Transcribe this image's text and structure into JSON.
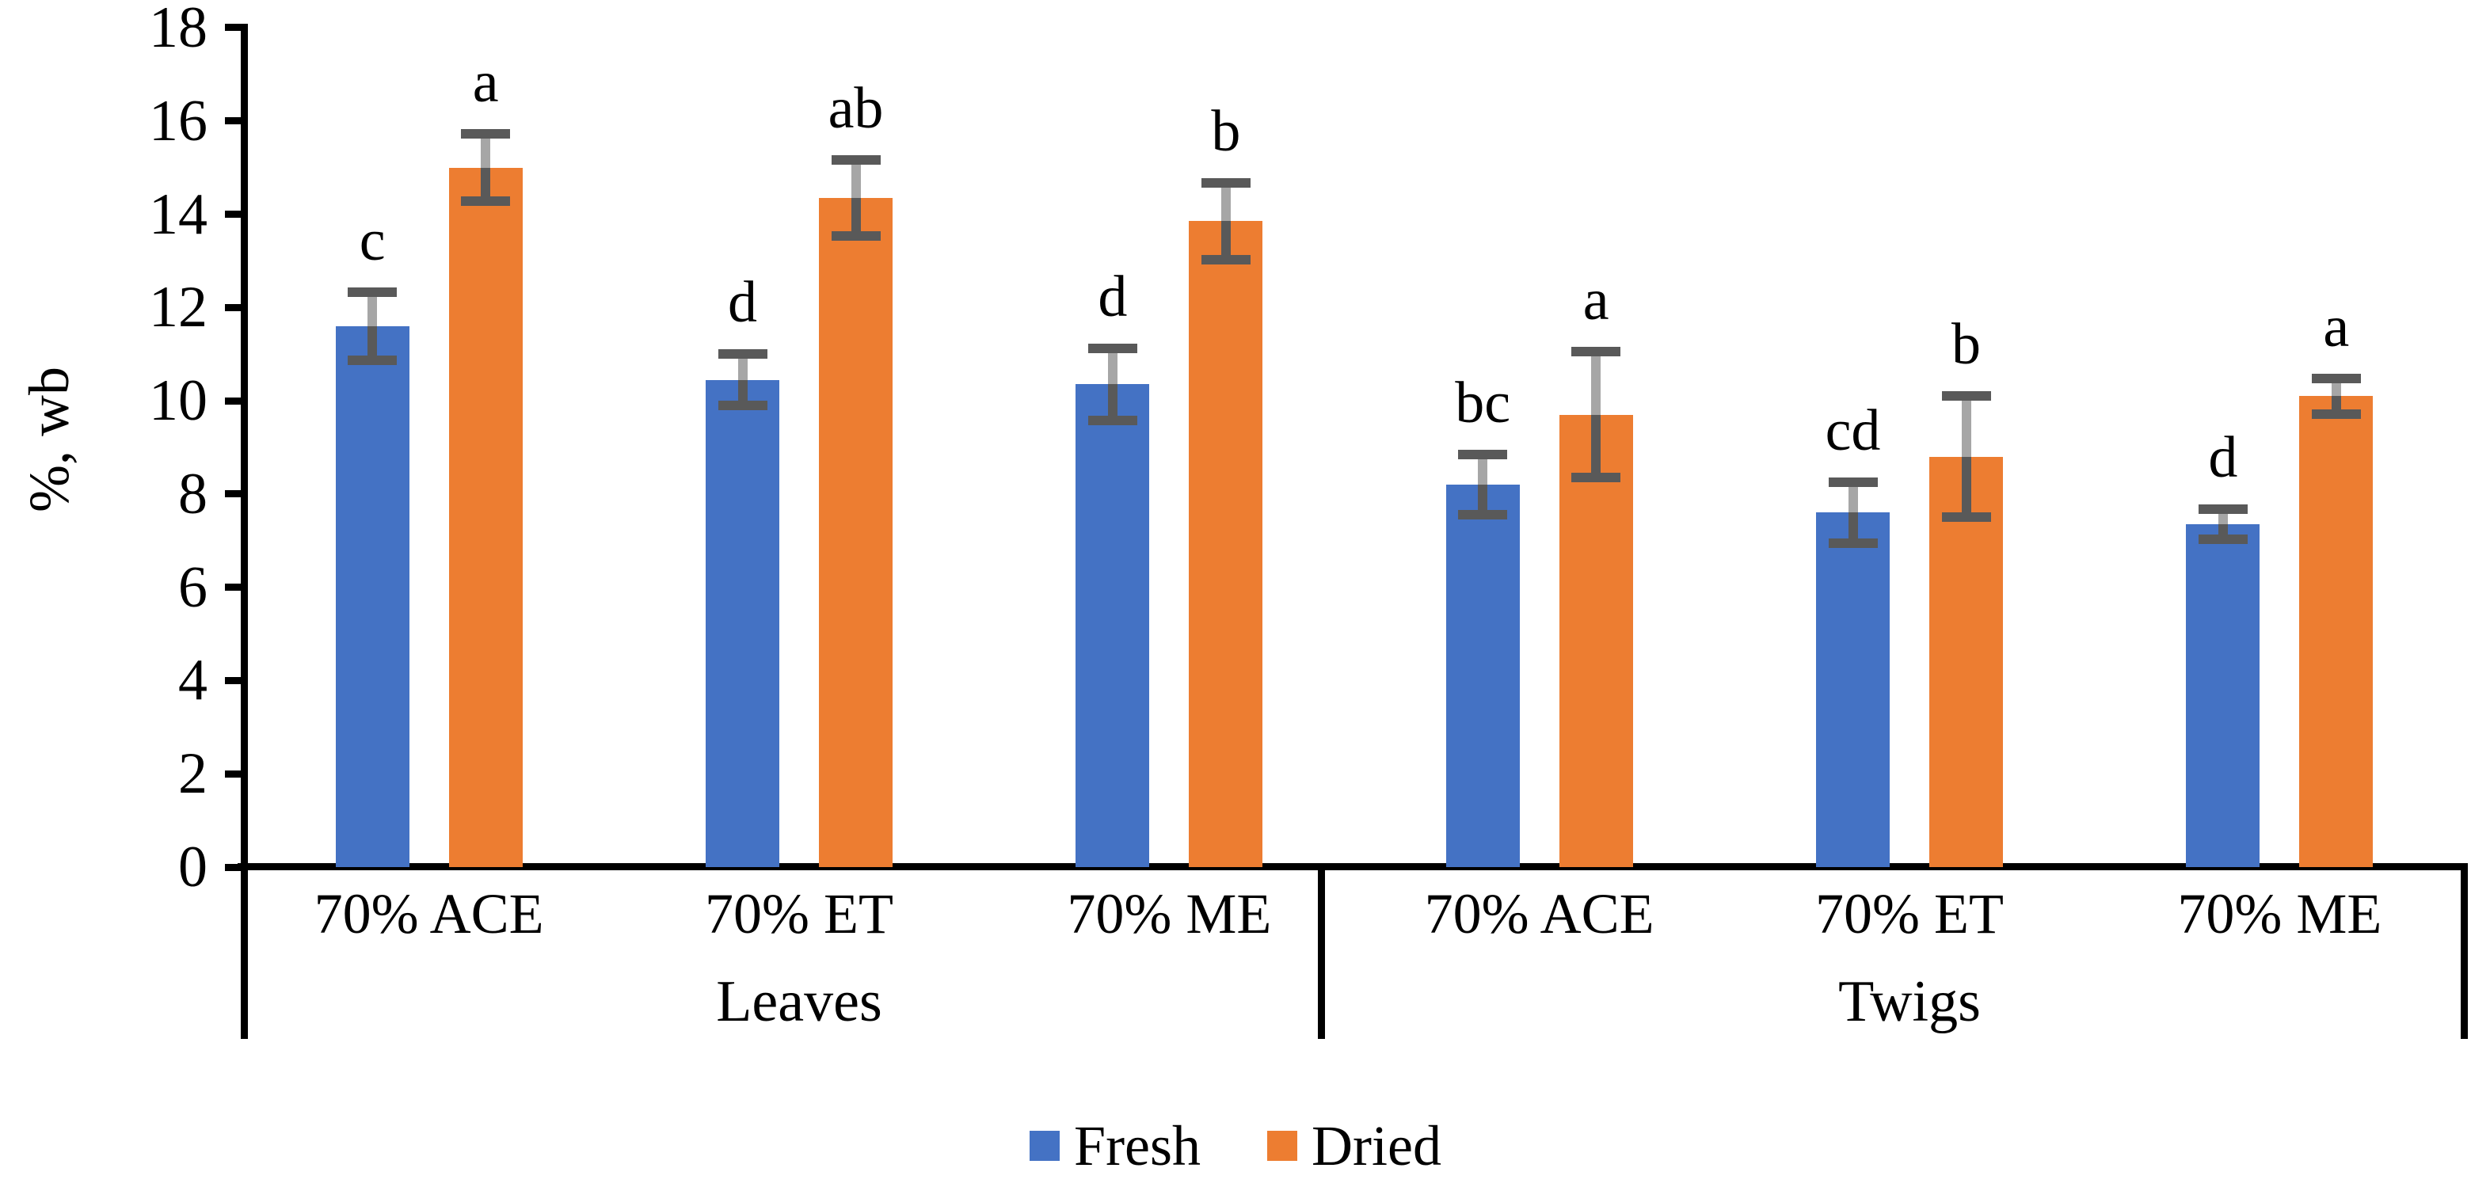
{
  "chart_data": {
    "type": "bar",
    "title": "",
    "ylabel": "%, wb",
    "ylim": [
      0,
      18
    ],
    "ytick_step": 2,
    "yticks": [
      0,
      2,
      4,
      6,
      8,
      10,
      12,
      14,
      16,
      18
    ],
    "grid": false,
    "legend_position": "bottom",
    "groups": [
      {
        "label": "Leaves",
        "categories": [
          "70% ACE",
          "70% ET",
          "70% ME"
        ]
      },
      {
        "label": "Twigs",
        "categories": [
          "70% ACE",
          "70% ET",
          "70% ME"
        ]
      }
    ],
    "series": [
      {
        "name": "Fresh",
        "color": "#4472C4",
        "values": [
          11.6,
          10.45,
          10.35,
          8.2,
          7.6,
          7.35
        ],
        "errors": [
          0.73,
          0.55,
          0.78,
          0.64,
          0.65,
          0.32
        ],
        "letters": [
          "c",
          "d",
          "d",
          "bc",
          "cd",
          "d"
        ]
      },
      {
        "name": "Dried",
        "color": "#ED7D31",
        "values": [
          15.0,
          14.35,
          13.85,
          9.7,
          8.8,
          10.1
        ],
        "errors": [
          0.72,
          0.82,
          0.82,
          1.35,
          1.3,
          0.38
        ],
        "letters": [
          "a",
          "ab",
          "b",
          "a",
          "b",
          "a"
        ]
      }
    ],
    "error_bar_colors": {
      "upper_whisker": "#A6A6A6",
      "lower_whisker": "#595959",
      "cap": "#595959"
    },
    "axis_color": "#000000",
    "background": "#FFFFFF"
  },
  "legend": {
    "fresh_label": "Fresh",
    "dried_label": "Dried"
  }
}
